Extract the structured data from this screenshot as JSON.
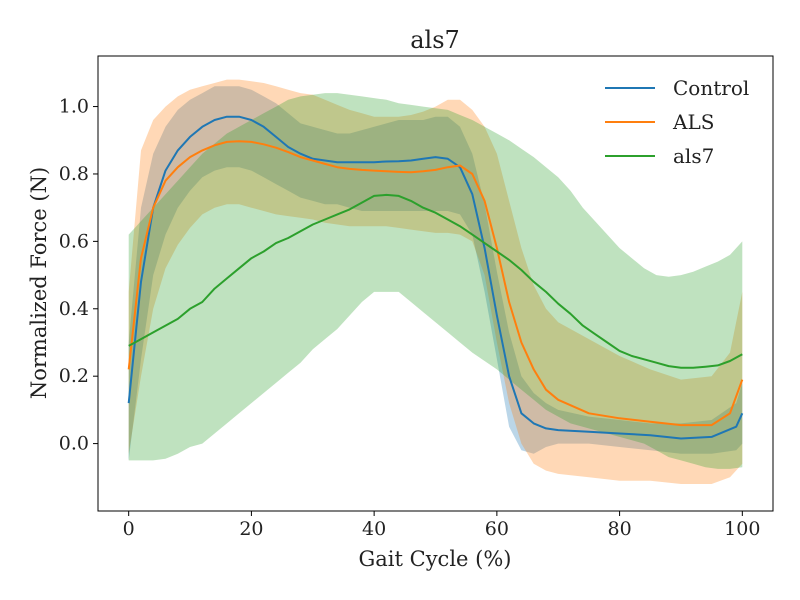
{
  "chart_data": {
    "type": "line",
    "title": "als7",
    "xlabel": "Gait Cycle (%)",
    "ylabel": "Normalized Force (N)",
    "xlim": [
      -5,
      105
    ],
    "ylim": [
      -0.2,
      1.15
    ],
    "xticks": [
      0,
      20,
      40,
      60,
      80,
      100
    ],
    "yticks": [
      0.0,
      0.2,
      0.4,
      0.6,
      0.8,
      1.0
    ],
    "legend_position": "top-right",
    "grid": false,
    "series": [
      {
        "name": "Control",
        "color": "#1f77b4",
        "x": [
          0,
          2,
          4,
          6,
          8,
          10,
          12,
          14,
          16,
          18,
          20,
          22,
          24,
          26,
          28,
          30,
          32,
          34,
          36,
          38,
          40,
          42,
          44,
          46,
          48,
          50,
          52,
          54,
          56,
          58,
          60,
          62,
          64,
          66,
          68,
          70,
          75,
          80,
          85,
          90,
          95,
          99,
          100
        ],
        "y": [
          0.12,
          0.48,
          0.7,
          0.81,
          0.87,
          0.91,
          0.94,
          0.96,
          0.97,
          0.97,
          0.96,
          0.94,
          0.91,
          0.88,
          0.86,
          0.845,
          0.84,
          0.835,
          0.835,
          0.835,
          0.835,
          0.837,
          0.838,
          0.84,
          0.845,
          0.85,
          0.845,
          0.82,
          0.74,
          0.58,
          0.38,
          0.2,
          0.09,
          0.06,
          0.045,
          0.04,
          0.035,
          0.03,
          0.025,
          0.015,
          0.02,
          0.05,
          0.09
        ],
        "lower": [
          -0.05,
          0.25,
          0.5,
          0.62,
          0.7,
          0.75,
          0.79,
          0.81,
          0.82,
          0.82,
          0.81,
          0.79,
          0.77,
          0.75,
          0.73,
          0.72,
          0.71,
          0.71,
          0.7,
          0.69,
          0.69,
          0.69,
          0.69,
          0.69,
          0.69,
          0.69,
          0.69,
          0.68,
          0.62,
          0.45,
          0.25,
          0.05,
          -0.02,
          -0.03,
          -0.01,
          0.0,
          0.0,
          -0.01,
          -0.02,
          -0.03,
          -0.03,
          -0.02,
          0.0
        ],
        "upper": [
          0.3,
          0.7,
          0.86,
          0.94,
          0.99,
          1.02,
          1.04,
          1.06,
          1.06,
          1.06,
          1.05,
          1.03,
          1.01,
          0.98,
          0.95,
          0.94,
          0.93,
          0.92,
          0.92,
          0.93,
          0.94,
          0.95,
          0.96,
          0.96,
          0.96,
          0.97,
          0.97,
          0.94,
          0.86,
          0.71,
          0.51,
          0.33,
          0.2,
          0.15,
          0.12,
          0.1,
          0.08,
          0.07,
          0.06,
          0.06,
          0.07,
          0.12,
          0.18
        ]
      },
      {
        "name": "ALS",
        "color": "#ff7f0e",
        "x": [
          0,
          2,
          4,
          6,
          8,
          10,
          12,
          14,
          16,
          18,
          20,
          22,
          24,
          26,
          28,
          30,
          32,
          34,
          36,
          38,
          40,
          42,
          44,
          46,
          48,
          50,
          52,
          54,
          56,
          58,
          60,
          62,
          64,
          66,
          68,
          70,
          75,
          80,
          85,
          90,
          95,
          98,
          100
        ],
        "y": [
          0.22,
          0.55,
          0.7,
          0.78,
          0.82,
          0.85,
          0.87,
          0.885,
          0.895,
          0.897,
          0.895,
          0.888,
          0.878,
          0.865,
          0.85,
          0.84,
          0.83,
          0.82,
          0.815,
          0.812,
          0.81,
          0.808,
          0.806,
          0.805,
          0.808,
          0.812,
          0.82,
          0.825,
          0.8,
          0.72,
          0.58,
          0.42,
          0.3,
          0.22,
          0.16,
          0.13,
          0.09,
          0.075,
          0.065,
          0.055,
          0.055,
          0.09,
          0.19
        ],
        "lower": [
          -0.03,
          0.2,
          0.4,
          0.52,
          0.59,
          0.64,
          0.68,
          0.7,
          0.71,
          0.71,
          0.7,
          0.69,
          0.68,
          0.675,
          0.67,
          0.665,
          0.655,
          0.65,
          0.645,
          0.645,
          0.645,
          0.645,
          0.64,
          0.635,
          0.63,
          0.625,
          0.625,
          0.62,
          0.6,
          0.5,
          0.3,
          0.12,
          0.0,
          -0.06,
          -0.08,
          -0.09,
          -0.1,
          -0.11,
          -0.11,
          -0.12,
          -0.12,
          -0.1,
          -0.06
        ],
        "upper": [
          0.45,
          0.87,
          0.96,
          1.0,
          1.03,
          1.05,
          1.06,
          1.07,
          1.08,
          1.08,
          1.075,
          1.07,
          1.06,
          1.05,
          1.04,
          1.035,
          1.02,
          1.005,
          0.99,
          0.98,
          0.97,
          0.97,
          0.97,
          0.975,
          0.985,
          1.0,
          1.02,
          1.02,
          0.99,
          0.94,
          0.86,
          0.72,
          0.58,
          0.47,
          0.4,
          0.36,
          0.31,
          0.26,
          0.22,
          0.19,
          0.2,
          0.27,
          0.45
        ]
      },
      {
        "name": "als7",
        "color": "#2ca02c",
        "x": [
          0,
          2,
          4,
          6,
          8,
          10,
          12,
          14,
          16,
          18,
          20,
          22,
          24,
          26,
          28,
          30,
          32,
          34,
          36,
          38,
          40,
          42,
          44,
          46,
          48,
          50,
          52,
          54,
          56,
          58,
          60,
          62,
          64,
          66,
          68,
          70,
          72,
          74,
          76,
          78,
          80,
          82,
          84,
          86,
          88,
          90,
          92,
          94,
          96,
          98,
          100
        ],
        "y": [
          0.29,
          0.31,
          0.33,
          0.35,
          0.37,
          0.4,
          0.42,
          0.46,
          0.49,
          0.52,
          0.55,
          0.57,
          0.595,
          0.61,
          0.63,
          0.65,
          0.665,
          0.68,
          0.695,
          0.715,
          0.735,
          0.738,
          0.735,
          0.72,
          0.7,
          0.685,
          0.665,
          0.645,
          0.62,
          0.595,
          0.57,
          0.545,
          0.515,
          0.48,
          0.45,
          0.415,
          0.385,
          0.35,
          0.325,
          0.3,
          0.275,
          0.26,
          0.25,
          0.24,
          0.23,
          0.225,
          0.225,
          0.228,
          0.232,
          0.245,
          0.265
        ],
        "lower": [
          -0.05,
          -0.05,
          -0.05,
          -0.045,
          -0.03,
          -0.01,
          0.0,
          0.03,
          0.06,
          0.09,
          0.12,
          0.15,
          0.18,
          0.21,
          0.24,
          0.28,
          0.31,
          0.34,
          0.38,
          0.42,
          0.45,
          0.45,
          0.45,
          0.42,
          0.39,
          0.36,
          0.33,
          0.3,
          0.27,
          0.245,
          0.22,
          0.19,
          0.16,
          0.13,
          0.1,
          0.08,
          0.06,
          0.05,
          0.04,
          0.03,
          0.02,
          0.01,
          0.0,
          -0.02,
          -0.04,
          -0.05,
          -0.06,
          -0.07,
          -0.075,
          -0.075,
          -0.07
        ],
        "upper": [
          0.62,
          0.66,
          0.7,
          0.74,
          0.78,
          0.82,
          0.86,
          0.89,
          0.92,
          0.94,
          0.96,
          0.98,
          1.0,
          1.02,
          1.03,
          1.035,
          1.04,
          1.04,
          1.035,
          1.03,
          1.025,
          1.02,
          1.01,
          1.005,
          1.0,
          0.995,
          0.99,
          0.975,
          0.96,
          0.94,
          0.92,
          0.9,
          0.875,
          0.85,
          0.82,
          0.79,
          0.75,
          0.7,
          0.66,
          0.62,
          0.58,
          0.55,
          0.52,
          0.5,
          0.495,
          0.5,
          0.51,
          0.525,
          0.54,
          0.56,
          0.6
        ]
      }
    ]
  }
}
